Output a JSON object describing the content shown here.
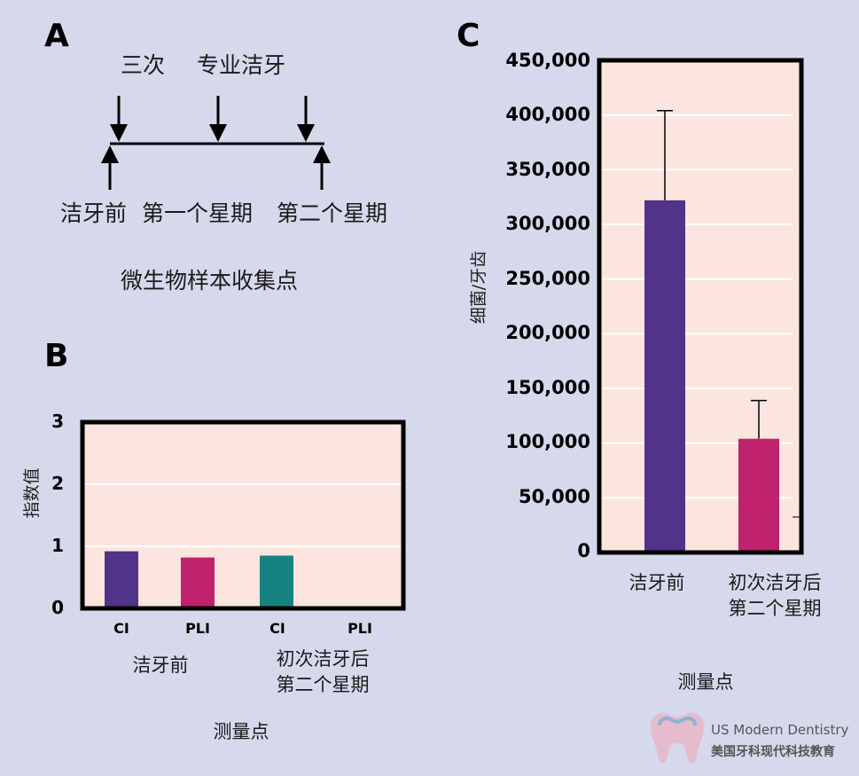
{
  "panel_a": {
    "letter": "A",
    "top_label_1": "三次",
    "top_label_2": "专业洁牙",
    "bottom_label_1": "洁牙前",
    "bottom_label_2": "第一个星期",
    "bottom_label_3": "第二个星期",
    "caption": "微生物样本收集点"
  },
  "chart_data": [
    {
      "panel": "B",
      "type": "bar",
      "title": "",
      "ylabel": "指数值",
      "xlabel": "测量点",
      "ylim": [
        0,
        3
      ],
      "yticks": [
        "0",
        "1",
        "2",
        "3"
      ],
      "categories": [
        "CI",
        "PLI",
        "CI",
        "PLI"
      ],
      "groups": [
        "洁牙前",
        "初次洁牙后\n第二个星期"
      ],
      "group_line_1": "初次洁牙后",
      "group_line_2": "第二个星期",
      "values": [
        0.92,
        0.82,
        0.85,
        0
      ],
      "colors": [
        "#51338a",
        "#c0216d",
        "#168381",
        "#000000"
      ]
    },
    {
      "panel": "C",
      "type": "bar",
      "title": "",
      "ylabel": "细菌/牙齿",
      "xlabel": "测量点",
      "ylim": [
        0,
        450000
      ],
      "yticks": [
        "0",
        "50,000",
        "100,000",
        "150,000",
        "200,000",
        "250,000",
        "300,000",
        "350,000",
        "400,000",
        "450,000"
      ],
      "categories": [
        "洁牙前",
        "初次洁牙后\n第二个星期"
      ],
      "category_2_line_1": "初次洁牙后",
      "category_2_line_2": "第二个星期",
      "values": [
        322000,
        104000
      ],
      "error_upper": [
        404000,
        139000
      ],
      "colors": [
        "#51338a",
        "#c0216d"
      ]
    }
  ],
  "panel_b_letter": "B",
  "panel_c_letter": "C",
  "watermark": {
    "text_en": "US Modern Dentistry",
    "text_cn": "美国牙科现代科技教育"
  },
  "colors": {
    "background": "#d6d8ec",
    "plot_bg": "#fce5df",
    "grid": "#ffffff"
  }
}
